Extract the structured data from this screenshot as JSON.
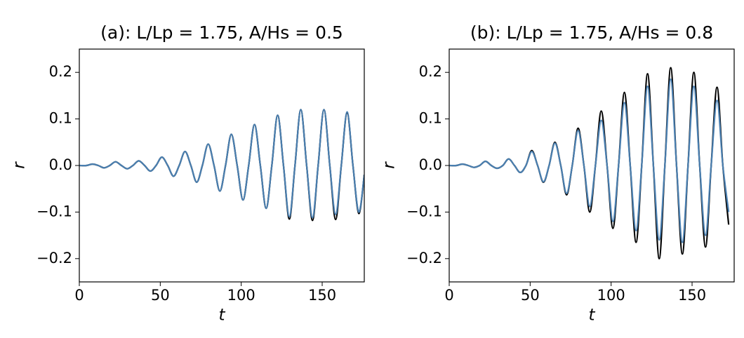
{
  "chart_data": [
    {
      "type": "line",
      "title": "(a): L/Lp = 1.75, A/Hs = 0.5",
      "xlabel": "t",
      "ylabel": "r",
      "x": [
        0,
        4.5,
        8.1,
        11.7,
        15.3,
        18.8,
        22.4,
        26,
        29.6,
        33.1,
        36.7,
        40.3,
        43.9,
        47.4,
        51,
        54.6,
        58.2,
        61.7,
        65.3,
        68.9,
        72.5,
        76,
        79.6,
        83.2,
        86.8,
        90.3,
        93.9,
        97.5,
        101.1,
        104.6,
        108.2,
        111.8,
        115.4,
        118.9,
        122.5,
        126.1,
        129.7,
        133.2,
        136.8,
        140.4,
        144,
        147.5,
        151.1,
        154.7,
        158.3,
        161.8,
        165.4,
        169,
        172.6,
        176
      ],
      "series": [
        {
          "color": "#000000",
          "values": [
            0,
            0,
            0.003,
            0,
            -0.005,
            0,
            0.008,
            0,
            -0.007,
            0,
            0.01,
            0,
            -0.012,
            0,
            0.018,
            0,
            -0.023,
            0,
            0.03,
            0,
            -0.036,
            0,
            0.046,
            0,
            -0.055,
            0,
            0.067,
            0,
            -0.074,
            0,
            0.088,
            0,
            -0.092,
            0,
            0.108,
            0,
            -0.115,
            0,
            0.12,
            0,
            -0.118,
            0,
            0.12,
            0,
            -0.116,
            0,
            0.113,
            0,
            -0.103,
            -0.02
          ]
        },
        {
          "color": "#4a7fb0",
          "values": [
            0,
            0,
            0.003,
            0,
            -0.005,
            0,
            0.008,
            0,
            -0.007,
            0,
            0.01,
            0,
            -0.012,
            0,
            0.018,
            0,
            -0.023,
            0,
            0.03,
            0,
            -0.036,
            0,
            0.046,
            0,
            -0.055,
            0,
            0.067,
            0,
            -0.074,
            0,
            0.088,
            0,
            -0.092,
            0,
            0.108,
            0,
            -0.11,
            0,
            0.12,
            0,
            -0.112,
            0,
            0.12,
            0,
            -0.105,
            0,
            0.115,
            0,
            -0.1,
            -0.02
          ]
        }
      ],
      "xlim": [
        0,
        176
      ],
      "ylim": [
        -0.25,
        0.25
      ],
      "xticks": [
        0,
        50,
        100,
        150
      ],
      "yticks": [
        {
          "value": -0.2,
          "label": "−0.2"
        },
        {
          "value": -0.1,
          "label": "−0.1"
        },
        {
          "value": 0,
          "label": "0.0"
        },
        0.1,
        0.2
      ]
    },
    {
      "type": "line",
      "title": "(b): L/Lp = 1.75, A/Hs = 0.8",
      "xlabel": "t",
      "ylabel": "r",
      "x": [
        0,
        4.5,
        8.1,
        11.7,
        15.3,
        18.8,
        22.4,
        26,
        29.6,
        33.1,
        36.7,
        40.3,
        43.9,
        47.4,
        51,
        54.6,
        58.2,
        61.7,
        65.3,
        68.9,
        72.5,
        76,
        79.6,
        83.2,
        86.8,
        90.3,
        93.9,
        97.5,
        101.1,
        104.6,
        108.2,
        111.8,
        115.4,
        118.9,
        122.5,
        126.1,
        129.7,
        133.2,
        136.8,
        140.4,
        144,
        147.5,
        151.1,
        154.7,
        158.3,
        161.8,
        165.4,
        169,
        172.6
      ],
      "series": [
        {
          "color": "#000000",
          "values": [
            0,
            0,
            0.003,
            0,
            -0.004,
            0,
            0.009,
            0,
            -0.006,
            0,
            0.014,
            0,
            -0.015,
            0,
            0.032,
            0,
            -0.036,
            0,
            0.05,
            0,
            -0.063,
            0,
            0.08,
            0,
            -0.1,
            0,
            0.117,
            0,
            -0.135,
            0,
            0.157,
            0,
            -0.165,
            0,
            0.197,
            0,
            -0.2,
            0,
            0.21,
            0,
            -0.19,
            0,
            0.2,
            0,
            -0.175,
            0,
            0.168,
            0,
            -0.127
          ]
        },
        {
          "color": "#4a7fb0",
          "values": [
            0,
            0,
            0.003,
            0,
            -0.004,
            0,
            0.009,
            0,
            -0.006,
            0,
            0.014,
            0,
            -0.015,
            0,
            0.03,
            0,
            -0.035,
            0,
            0.048,
            0,
            -0.06,
            0,
            0.075,
            0,
            -0.088,
            0,
            0.097,
            0,
            -0.12,
            0,
            0.135,
            0,
            -0.14,
            0,
            0.17,
            0,
            -0.16,
            0,
            0.185,
            0,
            -0.165,
            0,
            0.17,
            0,
            -0.15,
            0,
            0.14,
            0,
            -0.1
          ]
        }
      ],
      "xlim": [
        0,
        176
      ],
      "ylim": [
        -0.25,
        0.25
      ],
      "xticks": [
        0,
        50,
        100,
        150
      ],
      "yticks": [
        {
          "value": -0.2,
          "label": "−0.2"
        },
        {
          "value": -0.1,
          "label": "−0.1"
        },
        {
          "value": 0,
          "label": "0.0"
        },
        0.1,
        0.2
      ]
    }
  ]
}
